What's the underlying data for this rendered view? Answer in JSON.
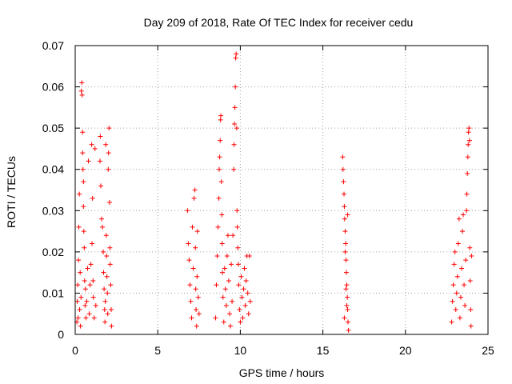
{
  "chart_data": {
    "type": "scatter",
    "title": "Day 209 of 2018, Rate Of TEC Index for receiver cedu",
    "xlabel": "GPS time / hours",
    "ylabel": "ROTI / TECUs",
    "xlim": [
      0,
      25
    ],
    "ylim": [
      0,
      0.07
    ],
    "xticks": [
      "0",
      "5",
      "10",
      "15",
      "20",
      "25"
    ],
    "yticks": [
      "0",
      "0.01",
      "0.02",
      "0.03",
      "0.04",
      "0.05",
      "0.06",
      "0.07"
    ],
    "grid": true,
    "marker": "+",
    "color": "#ff0000",
    "series": [
      {
        "name": "ROTI",
        "points": [
          [
            0.1,
            0.003
          ],
          [
            0.12,
            0.008
          ],
          [
            0.15,
            0.012
          ],
          [
            0.18,
            0.004
          ],
          [
            0.2,
            0.018
          ],
          [
            0.22,
            0.026
          ],
          [
            0.25,
            0.034
          ],
          [
            0.27,
            0.006
          ],
          [
            0.3,
            0.015
          ],
          [
            0.32,
            0.002
          ],
          [
            0.35,
            0.009
          ],
          [
            0.37,
            0.059
          ],
          [
            0.4,
            0.061
          ],
          [
            0.42,
            0.058
          ],
          [
            0.45,
            0.049
          ],
          [
            0.45,
            0.044
          ],
          [
            0.47,
            0.04
          ],
          [
            0.5,
            0.037
          ],
          [
            0.5,
            0.031
          ],
          [
            0.52,
            0.025
          ],
          [
            0.55,
            0.021
          ],
          [
            0.57,
            0.013
          ],
          [
            0.6,
            0.007
          ],
          [
            0.62,
            0.011
          ],
          [
            0.65,
            0.004
          ],
          [
            0.7,
            0.008
          ],
          [
            0.75,
            0.016
          ],
          [
            0.8,
            0.042
          ],
          [
            0.85,
            0.005
          ],
          [
            0.9,
            0.012
          ],
          [
            0.95,
            0.017
          ],
          [
            1.0,
            0.046
          ],
          [
            1.02,
            0.022
          ],
          [
            1.05,
            0.033
          ],
          [
            1.08,
            0.013
          ],
          [
            1.1,
            0.009
          ],
          [
            1.15,
            0.004
          ],
          [
            1.2,
            0.045
          ],
          [
            1.25,
            0.007
          ],
          [
            1.5,
            0.042
          ],
          [
            1.52,
            0.048
          ],
          [
            1.55,
            0.036
          ],
          [
            1.6,
            0.028
          ],
          [
            1.65,
            0.026
          ],
          [
            1.7,
            0.02
          ],
          [
            1.72,
            0.015
          ],
          [
            1.75,
            0.011
          ],
          [
            1.78,
            0.006
          ],
          [
            1.8,
            0.003
          ],
          [
            1.82,
            0.008
          ],
          [
            1.85,
            0.046
          ],
          [
            1.88,
            0.024
          ],
          [
            1.9,
            0.019
          ],
          [
            1.92,
            0.014
          ],
          [
            1.95,
            0.01
          ],
          [
            1.97,
            0.005
          ],
          [
            2.0,
            0.04
          ],
          [
            2.02,
            0.044
          ],
          [
            2.05,
            0.05
          ],
          [
            2.08,
            0.032
          ],
          [
            2.1,
            0.021
          ],
          [
            2.12,
            0.017
          ],
          [
            2.15,
            0.012
          ],
          [
            2.18,
            0.006
          ],
          [
            2.2,
            0.002
          ],
          [
            6.8,
            0.03
          ],
          [
            6.85,
            0.022
          ],
          [
            6.9,
            0.018
          ],
          [
            6.95,
            0.012
          ],
          [
            7.0,
            0.008
          ],
          [
            7.05,
            0.004
          ],
          [
            7.1,
            0.026
          ],
          [
            7.15,
            0.016
          ],
          [
            7.2,
            0.033
          ],
          [
            7.25,
            0.035
          ],
          [
            7.28,
            0.021
          ],
          [
            7.3,
            0.011
          ],
          [
            7.32,
            0.006
          ],
          [
            7.35,
            0.002
          ],
          [
            7.38,
            0.014
          ],
          [
            7.4,
            0.025
          ],
          [
            7.45,
            0.009
          ],
          [
            7.5,
            0.005
          ],
          [
            8.5,
            0.004
          ],
          [
            8.55,
            0.012
          ],
          [
            8.6,
            0.019
          ],
          [
            8.65,
            0.026
          ],
          [
            8.7,
            0.033
          ],
          [
            8.72,
            0.04
          ],
          [
            8.75,
            0.043
          ],
          [
            8.78,
            0.047
          ],
          [
            8.8,
            0.052
          ],
          [
            8.82,
            0.053
          ],
          [
            8.85,
            0.037
          ],
          [
            8.88,
            0.029
          ],
          [
            8.9,
            0.022
          ],
          [
            8.92,
            0.015
          ],
          [
            8.95,
            0.009
          ],
          [
            9.0,
            0.003
          ],
          [
            9.05,
            0.016
          ],
          [
            9.1,
            0.011
          ],
          [
            9.15,
            0.007
          ],
          [
            9.2,
            0.019
          ],
          [
            9.25,
            0.024
          ],
          [
            9.3,
            0.013
          ],
          [
            9.35,
            0.005
          ],
          [
            9.4,
            0.002
          ],
          [
            9.45,
            0.017
          ],
          [
            9.5,
            0.008
          ],
          [
            9.55,
            0.024
          ],
          [
            9.6,
            0.04
          ],
          [
            9.62,
            0.046
          ],
          [
            9.65,
            0.051
          ],
          [
            9.67,
            0.055
          ],
          [
            9.7,
            0.06
          ],
          [
            9.72,
            0.067
          ],
          [
            9.75,
            0.068
          ],
          [
            9.78,
            0.05
          ],
          [
            9.8,
            0.03
          ],
          [
            9.82,
            0.026
          ],
          [
            9.85,
            0.021
          ],
          [
            9.88,
            0.017
          ],
          [
            9.9,
            0.012
          ],
          [
            9.95,
            0.006
          ],
          [
            10.0,
            0.003
          ],
          [
            10.05,
            0.014
          ],
          [
            10.1,
            0.009
          ],
          [
            10.15,
            0.004
          ],
          [
            10.2,
            0.011
          ],
          [
            10.25,
            0.016
          ],
          [
            10.3,
            0.007
          ],
          [
            10.35,
            0.013
          ],
          [
            10.4,
            0.019
          ],
          [
            10.45,
            0.01
          ],
          [
            10.5,
            0.005
          ],
          [
            10.55,
            0.019
          ],
          [
            10.6,
            0.008
          ],
          [
            16.2,
            0.043
          ],
          [
            16.22,
            0.04
          ],
          [
            16.25,
            0.037
          ],
          [
            16.28,
            0.034
          ],
          [
            16.3,
            0.031
          ],
          [
            16.32,
            0.028
          ],
          [
            16.35,
            0.025
          ],
          [
            16.38,
            0.022
          ],
          [
            16.4,
            0.018
          ],
          [
            16.42,
            0.015
          ],
          [
            16.45,
            0.012
          ],
          [
            16.48,
            0.009
          ],
          [
            16.5,
            0.006
          ],
          [
            16.52,
            0.003
          ],
          [
            16.55,
            0.001
          ],
          [
            16.35,
            0.02
          ],
          [
            16.4,
            0.011
          ],
          [
            16.45,
            0.007
          ],
          [
            16.5,
            0.029
          ],
          [
            16.3,
            0.004
          ],
          [
            22.8,
            0.003
          ],
          [
            22.85,
            0.008
          ],
          [
            22.9,
            0.012
          ],
          [
            22.95,
            0.017
          ],
          [
            23.0,
            0.02
          ],
          [
            23.05,
            0.006
          ],
          [
            23.1,
            0.01
          ],
          [
            23.15,
            0.014
          ],
          [
            23.2,
            0.022
          ],
          [
            23.25,
            0.028
          ],
          [
            23.3,
            0.004
          ],
          [
            23.35,
            0.009
          ],
          [
            23.4,
            0.016
          ],
          [
            23.45,
            0.025
          ],
          [
            23.5,
            0.029
          ],
          [
            23.55,
            0.012
          ],
          [
            23.6,
            0.007
          ],
          [
            23.65,
            0.018
          ],
          [
            23.7,
            0.03
          ],
          [
            23.72,
            0.034
          ],
          [
            23.75,
            0.039
          ],
          [
            23.78,
            0.043
          ],
          [
            23.8,
            0.046
          ],
          [
            23.82,
            0.049
          ],
          [
            23.85,
            0.05
          ],
          [
            23.88,
            0.047
          ],
          [
            23.9,
            0.021
          ],
          [
            23.92,
            0.013
          ],
          [
            23.95,
            0.006
          ],
          [
            23.97,
            0.002
          ],
          [
            24.0,
            0.019
          ]
        ]
      }
    ]
  }
}
